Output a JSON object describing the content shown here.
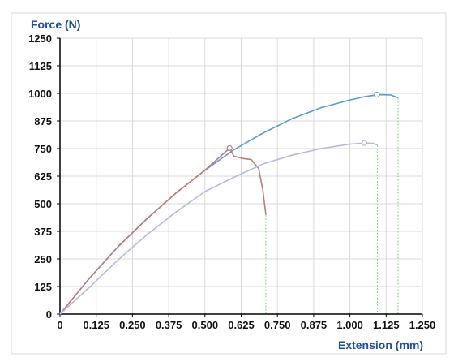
{
  "chart_data": {
    "type": "line",
    "ylabel": "Force (N)",
    "xlabel": "Extension (mm)",
    "xlim": [
      0,
      1.25
    ],
    "ylim": [
      0,
      1250
    ],
    "x_ticks": [
      "0",
      "0.125",
      "0.250",
      "0.375",
      "0.500",
      "0.625",
      "0.750",
      "0.875",
      "1.000",
      "1.125",
      "1.250"
    ],
    "y_ticks": [
      "0",
      "125",
      "250",
      "375",
      "500",
      "625",
      "750",
      "875",
      "1000",
      "1125",
      "1250"
    ],
    "grid": true,
    "colors": {
      "title": "#1f4e9e",
      "grid": "#d9d9d9",
      "axis": "#000000",
      "guide": "#7ccf7c"
    },
    "series": [
      {
        "color": "#5b9bd5",
        "x": [
          0,
          0.1,
          0.2,
          0.3,
          0.4,
          0.5,
          0.6,
          0.7,
          0.8,
          0.9,
          1.0,
          1.05,
          1.1,
          1.14,
          1.166
        ],
        "y": [
          0,
          160,
          305,
          432,
          548,
          652,
          745,
          820,
          885,
          935,
          970,
          985,
          994,
          993,
          980
        ],
        "peak": {
          "x": 1.093,
          "y": 994
        },
        "break_x": 1.166
      },
      {
        "color": "#c07a7a",
        "x": [
          0,
          0.1,
          0.2,
          0.3,
          0.4,
          0.5,
          0.585,
          0.6,
          0.63,
          0.66,
          0.685,
          0.7,
          0.71
        ],
        "y": [
          0,
          160,
          305,
          432,
          548,
          652,
          752,
          715,
          705,
          700,
          660,
          560,
          450
        ],
        "peak": {
          "x": 0.585,
          "y": 752
        },
        "break_x": 0.71
      },
      {
        "color": "#b8b8e0",
        "x": [
          0,
          0.1,
          0.2,
          0.3,
          0.4,
          0.5,
          0.6,
          0.7,
          0.8,
          0.9,
          1.0,
          1.05,
          1.08,
          1.095
        ],
        "y": [
          0,
          120,
          245,
          360,
          462,
          555,
          620,
          680,
          720,
          750,
          770,
          775,
          774,
          765
        ],
        "peak": {
          "x": 1.05,
          "y": 775
        },
        "break_x": 1.095
      }
    ]
  }
}
